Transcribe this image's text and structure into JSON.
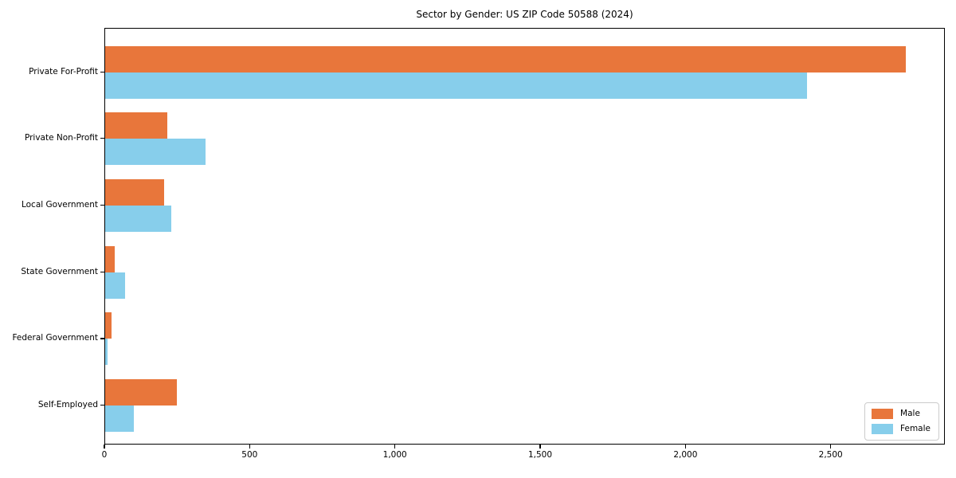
{
  "title": "Sector by Gender: US ZIP Code 50588 (2024)",
  "chart_data": {
    "type": "bar",
    "orientation": "horizontal",
    "title": "Sector by Gender: US ZIP Code 50588 (2024)",
    "categories": [
      "Private For-Profit",
      "Private Non-Profit",
      "Local Government",
      "State Government",
      "Federal Government",
      "Self-Employed"
    ],
    "series": [
      {
        "name": "Male",
        "color": "#E8763B",
        "values": [
          2755,
          214,
          203,
          33,
          21,
          247
        ]
      },
      {
        "name": "Female",
        "color": "#87CEEB",
        "values": [
          2417,
          345,
          228,
          68,
          9,
          99
        ]
      }
    ],
    "xlabel": "",
    "ylabel": "",
    "xlim": [
      0,
      2893
    ],
    "xticks": [
      0,
      500,
      1000,
      1500,
      2000,
      2500
    ],
    "xtick_labels": [
      "0",
      "500",
      "1,000",
      "1,500",
      "2,000",
      "2,500"
    ],
    "grid": false,
    "legend": {
      "position": "lower right"
    },
    "background": "#ffffff",
    "bar_colors": {
      "male": "#E8763B",
      "female": "#87CEEB"
    }
  }
}
